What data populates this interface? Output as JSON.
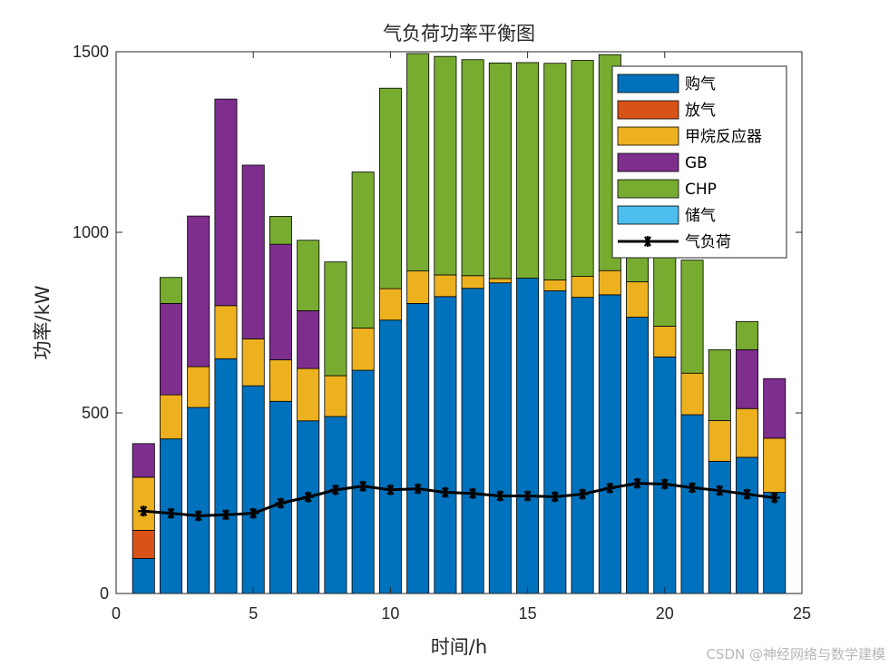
{
  "chart_data": {
    "type": "bar",
    "stacked": true,
    "title": "气负荷功率平衡图",
    "xlabel": "时间/h",
    "ylabel": "功率/kW",
    "xlim": [
      0,
      25
    ],
    "ylim": [
      0,
      1500
    ],
    "xticks": [
      0,
      5,
      10,
      15,
      20,
      25
    ],
    "yticks": [
      0,
      500,
      1000,
      1500
    ],
    "grid": false,
    "legend_position": "top-right",
    "x": [
      1,
      2,
      3,
      4,
      5,
      6,
      7,
      8,
      9,
      10,
      11,
      12,
      13,
      14,
      15,
      16,
      17,
      18,
      19,
      20,
      21,
      22,
      23,
      24
    ],
    "series": [
      {
        "name": "购气",
        "color": "#0072BD",
        "values": [
          97,
          428,
          515,
          650,
          575,
          532,
          478,
          490,
          618,
          757,
          803,
          822,
          845,
          860,
          873,
          838,
          820,
          827,
          765,
          655,
          495,
          366,
          377,
          280
        ]
      },
      {
        "name": "放气",
        "color": "#D95319",
        "values": [
          78,
          0,
          0,
          0,
          0,
          0,
          0,
          0,
          0,
          0,
          0,
          0,
          0,
          0,
          0,
          0,
          0,
          0,
          0,
          0,
          0,
          0,
          0,
          0
        ]
      },
      {
        "name": "甲烷反应器",
        "color": "#EDB120",
        "values": [
          147,
          122,
          113,
          147,
          130,
          115,
          145,
          113,
          117,
          87,
          90,
          60,
          35,
          12,
          0,
          30,
          58,
          67,
          98,
          85,
          115,
          113,
          135,
          150
        ]
      },
      {
        "name": "GB",
        "color": "#7E2F8E",
        "values": [
          93,
          253,
          417,
          572,
          481,
          320,
          160,
          0,
          0,
          0,
          0,
          0,
          0,
          0,
          0,
          0,
          0,
          0,
          0,
          0,
          0,
          0,
          163,
          165
        ]
      },
      {
        "name": "CHP",
        "color": "#77AC30",
        "values": [
          0,
          72,
          0,
          0,
          0,
          77,
          195,
          315,
          432,
          555,
          602,
          605,
          598,
          597,
          597,
          600,
          598,
          598,
          385,
          300,
          313,
          196,
          78,
          0
        ]
      },
      {
        "name": "储气",
        "color": "#4DBEEE",
        "values": [
          0,
          0,
          0,
          0,
          0,
          0,
          0,
          0,
          0,
          0,
          0,
          0,
          0,
          0,
          0,
          0,
          0,
          0,
          0,
          0,
          0,
          0,
          0,
          0
        ]
      }
    ],
    "line": {
      "name": "气负荷",
      "color": "#000000",
      "marker": "*",
      "values": [
        228,
        222,
        215,
        218,
        222,
        250,
        267,
        287,
        297,
        287,
        290,
        280,
        277,
        270,
        270,
        268,
        275,
        292,
        305,
        303,
        293,
        285,
        275,
        265
      ]
    }
  },
  "watermark": "CSDN @神经网络与数学建模"
}
